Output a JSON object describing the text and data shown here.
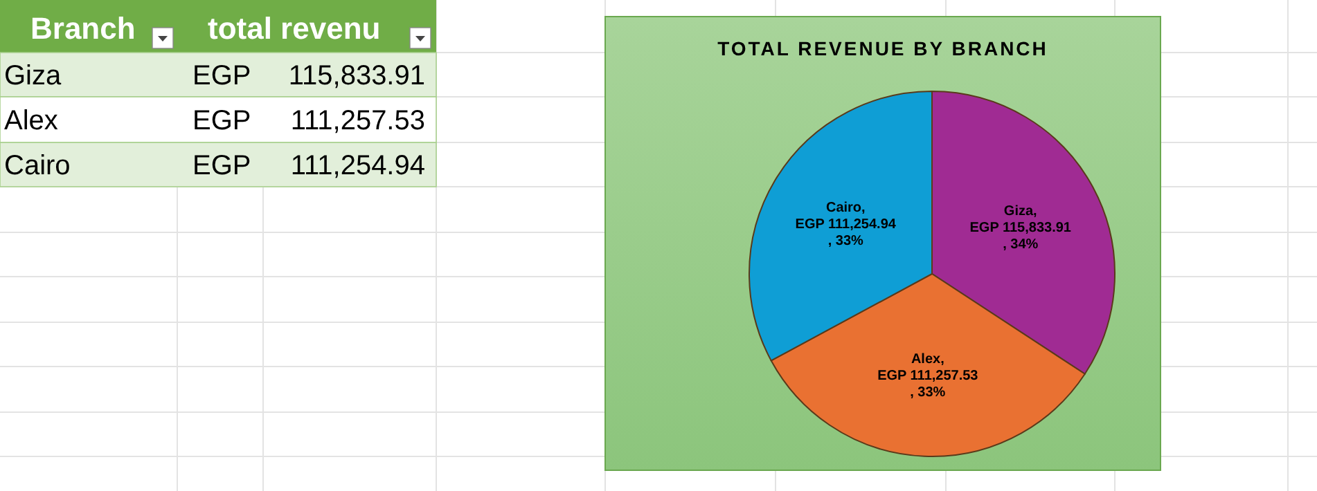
{
  "chart_data": [
    {
      "type": "other",
      "categories": [
        "Branch",
        "total revenu"
      ],
      "annotations": [
        "Giza",
        "EGP",
        "115,833.91",
        "Alex",
        "EGP",
        "111,257.53",
        "Cairo",
        "EGP",
        "111,254.94"
      ]
    },
    {
      "type": "pie",
      "title": "TOTAL REVENUE BY BRANCH",
      "categories": [
        "Giza",
        "Alex",
        "Cairo"
      ],
      "values": [
        115833.91,
        111257.53,
        111254.94
      ],
      "colors": [
        "#a02b93",
        "#e97132",
        "#0f9ed5"
      ],
      "data_labels": true,
      "value_labels": [
        ",\nEGP 115,833.91\n, 34%",
        ",\nEGP 111,257.53\n, 33%",
        ",\nEGP 111,254.94\n, 33%"
      ],
      "legend": false
    }
  ]
}
